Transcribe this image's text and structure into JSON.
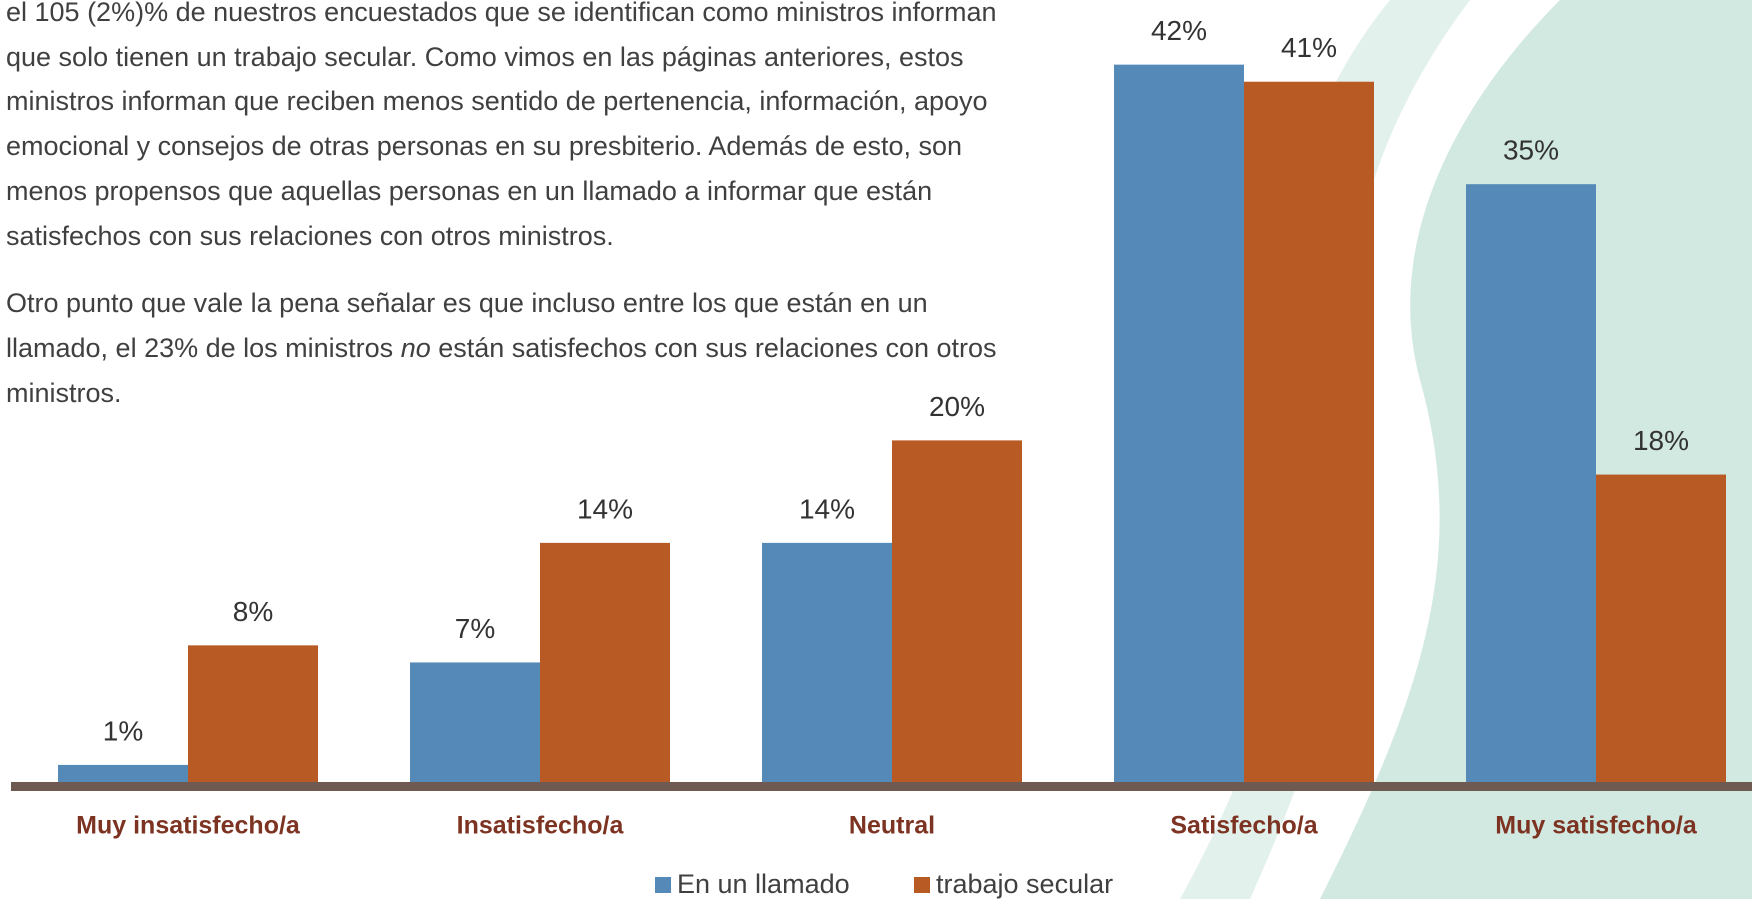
{
  "intro_text": {
    "paragraph_1": "el 105 (2%)% de nuestros encuestados que se identifican como ministros informan que solo tienen un trabajo secular. Como vimos en las páginas anteriores, estos ministros informan que reciben menos sentido de pertenencia, información, apoyo emocional y consejos de otras personas en su presbiterio. Además de esto, son menos propensos que aquellas personas en un llamado a informar que están satisfechos con sus relaciones con otros ministros.",
    "paragraph_2": [
      "Otro punto que vale la pena señalar es que incluso entre los que están en un llamado, el 23% de los ministros ",
      "no",
      " están satisfechos con sus relaciones con otros ministros."
    ]
  },
  "chart_data": {
    "type": "bar",
    "categories": [
      "Muy insatisfecho/a",
      "Insatisfecho/a",
      "Neutral",
      "Satisfecho/a",
      "Muy satisfecho/a"
    ],
    "series": [
      {
        "name": "En un llamado",
        "color": "#5589b8",
        "values": [
          1,
          7,
          14,
          42,
          35
        ],
        "value_labels": [
          "1%",
          "7%",
          "14%",
          "42%",
          "35%"
        ]
      },
      {
        "name": "trabajo secular",
        "color": "#b85a23",
        "values": [
          8,
          14,
          20,
          41,
          18
        ],
        "value_labels": [
          "8%",
          "14%",
          "20%",
          "41%",
          "18%"
        ]
      }
    ],
    "legend": "bottom"
  }
}
